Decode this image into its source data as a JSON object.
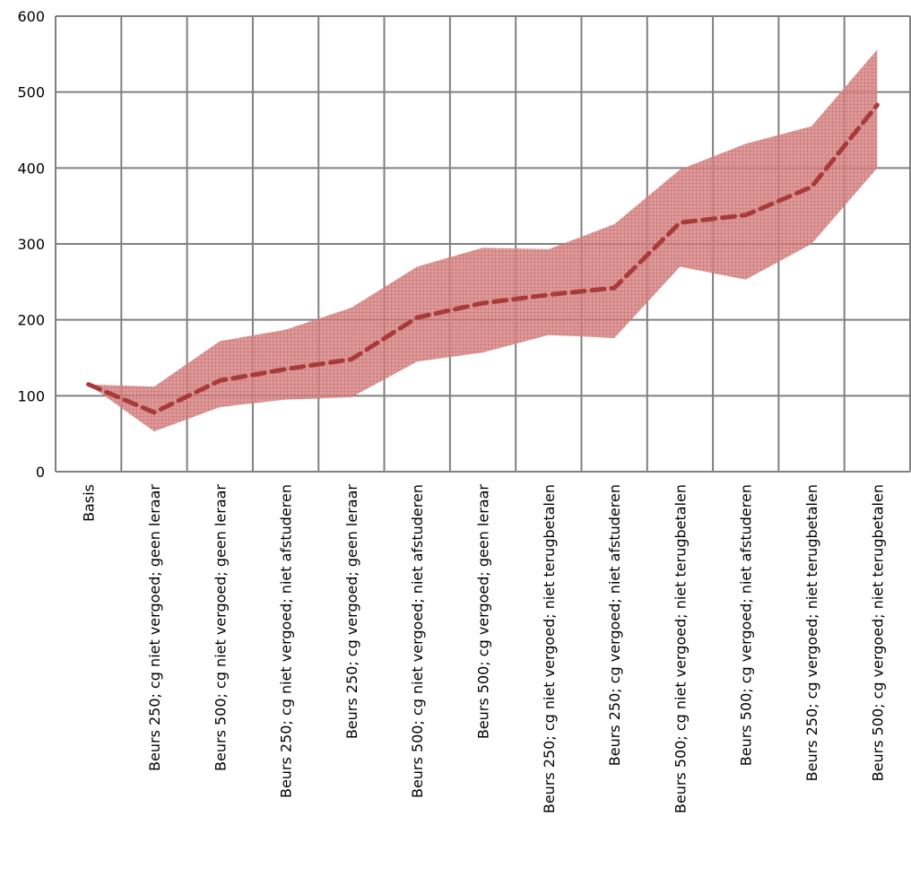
{
  "chart_data": {
    "type": "line",
    "title": "",
    "xlabel": "",
    "ylabel": "",
    "ylim": [
      0,
      600
    ],
    "yticks": [
      0,
      100,
      200,
      300,
      400,
      500,
      600
    ],
    "grid": true,
    "categories": [
      "Basis",
      "Beurs 250; cg niet vergoed; geen leraar",
      "Beurs 500; cg niet vergoed; geen leraar",
      "Beurs 250; cg niet vergoed; niet afstuderen",
      "Beurs 250; cg vergoed; geen leraar",
      "Beurs 500; cg niet vergoed; niet afstuderen",
      "Beurs 500; cg vergoed; geen leraar",
      "Beurs 250; cg niet vergoed; niet terugbetalen",
      "Beurs 250; cg vergoed; niet afstuderen",
      "Beurs 500; cg niet vergoed; niet terugbetalen",
      "Beurs 500; cg vergoed; niet afstuderen",
      "Beurs 250; cg vergoed; niet terugbetalen",
      "Beurs 500; cg vergoed; niet terugbetalen"
    ],
    "series": [
      {
        "style": "dashed-line",
        "color": "#A83A3A",
        "values": [
          115,
          78,
          120,
          135,
          148,
          203,
          222,
          233,
          242,
          328,
          338,
          375,
          483
        ]
      },
      {
        "style": "band-upper",
        "color": "#C0504D",
        "values": [
          115,
          112,
          172,
          187,
          216,
          270,
          295,
          293,
          326,
          398,
          432,
          455,
          556
        ]
      },
      {
        "style": "band-lower",
        "color": "#C0504D",
        "values": [
          115,
          53,
          85,
          95,
          98,
          145,
          157,
          180,
          176,
          270,
          253,
          300,
          400
        ]
      }
    ],
    "colors": {
      "band_fill": "#C0504D",
      "band_hatch": "#A04040",
      "line": "#A83A3A",
      "grid": "#808080"
    }
  }
}
